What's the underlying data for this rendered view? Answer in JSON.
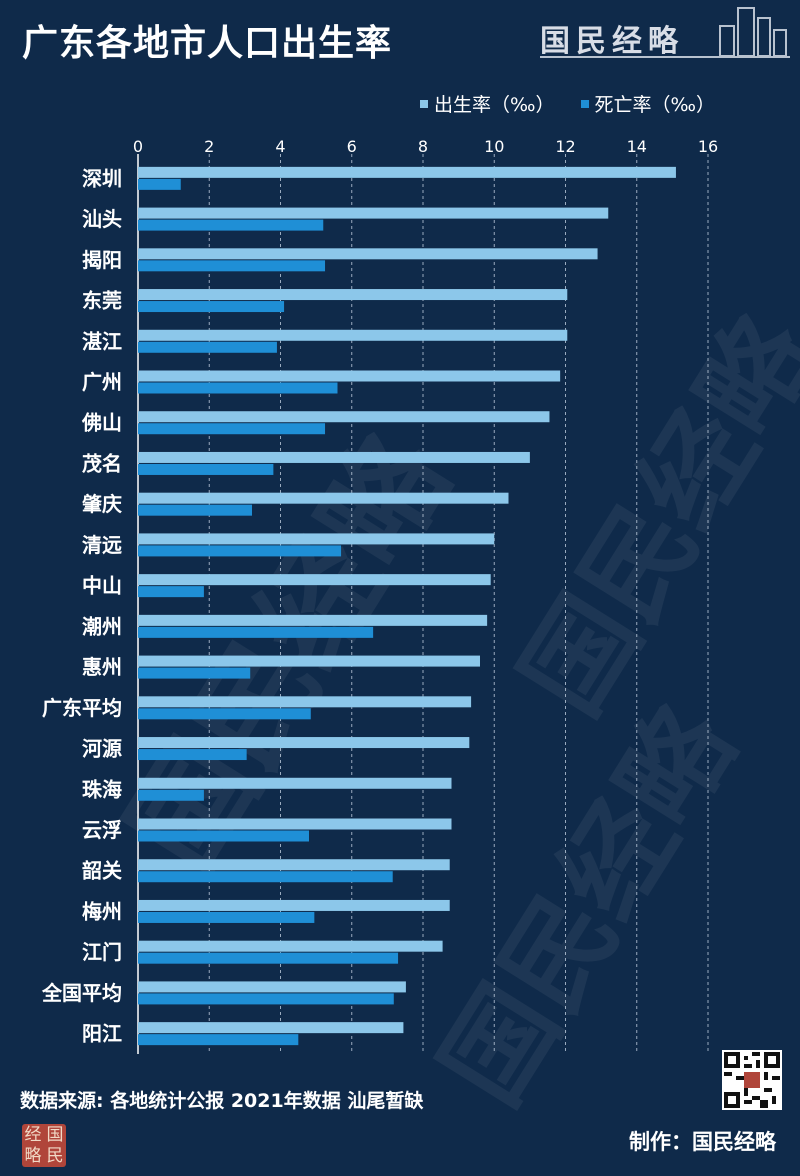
{
  "title": "广东各地市人口出生率",
  "brand": {
    "name": "国民经略"
  },
  "legend": [
    {
      "label": "出生率（‰）",
      "color": "#8cc7ea"
    },
    {
      "label": "死亡率（‰）",
      "color": "#1f8fd6"
    }
  ],
  "source_text": "数据来源: 各地统计公报 2021年数据 汕尾暂缺",
  "maker_text": "制作：国民经略",
  "seal_chars": [
    "经",
    "国",
    "略",
    "民"
  ],
  "watermark_text": "国民经略",
  "colors": {
    "background": "#0f2a4a",
    "birth": "#8cc7ea",
    "death": "#1f8fd6"
  },
  "chart_data": {
    "type": "bar",
    "orientation": "horizontal",
    "title": "广东各地市人口出生率",
    "categories": [
      "深圳",
      "汕头",
      "揭阳",
      "东莞",
      "湛江",
      "广州",
      "佛山",
      "茂名",
      "肇庆",
      "清远",
      "中山",
      "潮州",
      "惠州",
      "广东平均",
      "河源",
      "珠海",
      "云浮",
      "韶关",
      "梅州",
      "江门",
      "全国平均",
      "阳江"
    ],
    "series": [
      {
        "name": "出生率（‰）",
        "values": [
          15.1,
          13.2,
          12.9,
          12.05,
          12.05,
          11.85,
          11.55,
          11.0,
          10.4,
          10.0,
          9.9,
          9.8,
          9.6,
          9.35,
          9.3,
          8.8,
          8.8,
          8.75,
          8.75,
          8.55,
          7.52,
          7.45
        ]
      },
      {
        "name": "死亡率（‰）",
        "values": [
          1.2,
          5.2,
          5.25,
          4.1,
          3.9,
          5.6,
          5.25,
          3.8,
          3.2,
          5.7,
          1.85,
          6.6,
          3.15,
          4.85,
          3.05,
          1.85,
          4.8,
          7.15,
          4.95,
          7.3,
          7.18,
          4.5
        ]
      }
    ],
    "xlim": [
      0,
      16
    ],
    "ticks": [
      0,
      2,
      4,
      6,
      8,
      10,
      12,
      14,
      16
    ],
    "grid": true,
    "legend_position": "top-right"
  }
}
